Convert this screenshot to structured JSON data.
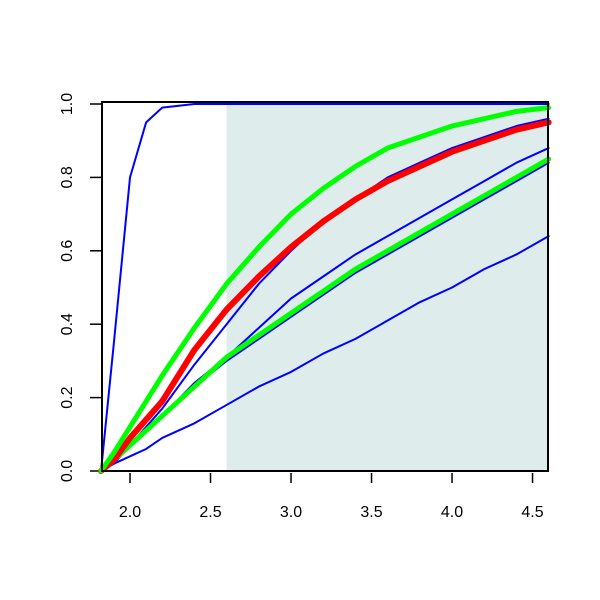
{
  "chart_data": {
    "type": "line",
    "x": [
      1.82,
      1.9,
      2.0,
      2.1,
      2.2,
      2.4,
      2.6,
      2.8,
      3.0,
      3.2,
      3.4,
      3.6,
      3.8,
      4.0,
      4.2,
      4.4,
      4.6
    ],
    "series": [
      {
        "color": "#0000ff",
        "width": 2,
        "values": [
          0,
          0.02,
          0.04,
          0.06,
          0.09,
          0.13,
          0.18,
          0.23,
          0.27,
          0.32,
          0.36,
          0.41,
          0.46,
          0.5,
          0.55,
          0.59,
          0.64
        ]
      },
      {
        "color": "#0000ff",
        "width": 2,
        "values": [
          0,
          0.35,
          0.8,
          0.95,
          0.99,
          1,
          1,
          1,
          1,
          1,
          1,
          1,
          1,
          1,
          1,
          1,
          1
        ]
      },
      {
        "color": "#0000ff",
        "width": 2,
        "values": [
          0,
          0.03,
          0.07,
          0.11,
          0.15,
          0.24,
          0.31,
          0.39,
          0.47,
          0.53,
          0.59,
          0.64,
          0.69,
          0.74,
          0.79,
          0.84,
          0.88
        ]
      },
      {
        "color": "#0000ff",
        "width": 2,
        "values": [
          0,
          0.03,
          0.07,
          0.11,
          0.15,
          0.23,
          0.3,
          0.36,
          0.42,
          0.48,
          0.54,
          0.59,
          0.64,
          0.69,
          0.74,
          0.79,
          0.84
        ]
      },
      {
        "color": "#0000ff",
        "width": 2,
        "values": [
          0,
          0.02,
          0.07,
          0.12,
          0.17,
          0.29,
          0.4,
          0.51,
          0.6,
          0.68,
          0.74,
          0.8,
          0.84,
          0.88,
          0.91,
          0.94,
          0.96
        ]
      },
      {
        "color": "#00ff00",
        "width": 5,
        "values": [
          0,
          0.03,
          0.07,
          0.11,
          0.15,
          0.23,
          0.31,
          0.37,
          0.43,
          0.49,
          0.55,
          0.6,
          0.65,
          0.7,
          0.75,
          0.8,
          0.85
        ]
      },
      {
        "color": "#ff0000",
        "width": 6,
        "values": [
          0,
          0.03,
          0.09,
          0.14,
          0.19,
          0.33,
          0.44,
          0.53,
          0.61,
          0.68,
          0.74,
          0.79,
          0.83,
          0.87,
          0.9,
          0.93,
          0.95
        ]
      },
      {
        "color": "#00ff00",
        "width": 5,
        "values": [
          0,
          0.05,
          0.12,
          0.19,
          0.26,
          0.39,
          0.51,
          0.61,
          0.7,
          0.77,
          0.83,
          0.88,
          0.91,
          0.94,
          0.96,
          0.98,
          0.99
        ]
      }
    ],
    "shaded_region": {
      "xmin": 2.6,
      "color": "#dfecec"
    },
    "xlim": [
      1.826,
      4.596
    ],
    "ylim": [
      0,
      1
    ],
    "xticks": [
      {
        "value": 2.0,
        "label": "2.0"
      },
      2.5,
      {
        "value": 3.0,
        "label": "3.0"
      },
      3.5,
      {
        "value": 4.0,
        "label": "4.0"
      },
      4.5
    ],
    "yticks": [
      {
        "value": 0,
        "label": "0.0"
      },
      0.2,
      0.4,
      0.6,
      0.8,
      {
        "value": 1,
        "label": "1.0"
      }
    ]
  }
}
